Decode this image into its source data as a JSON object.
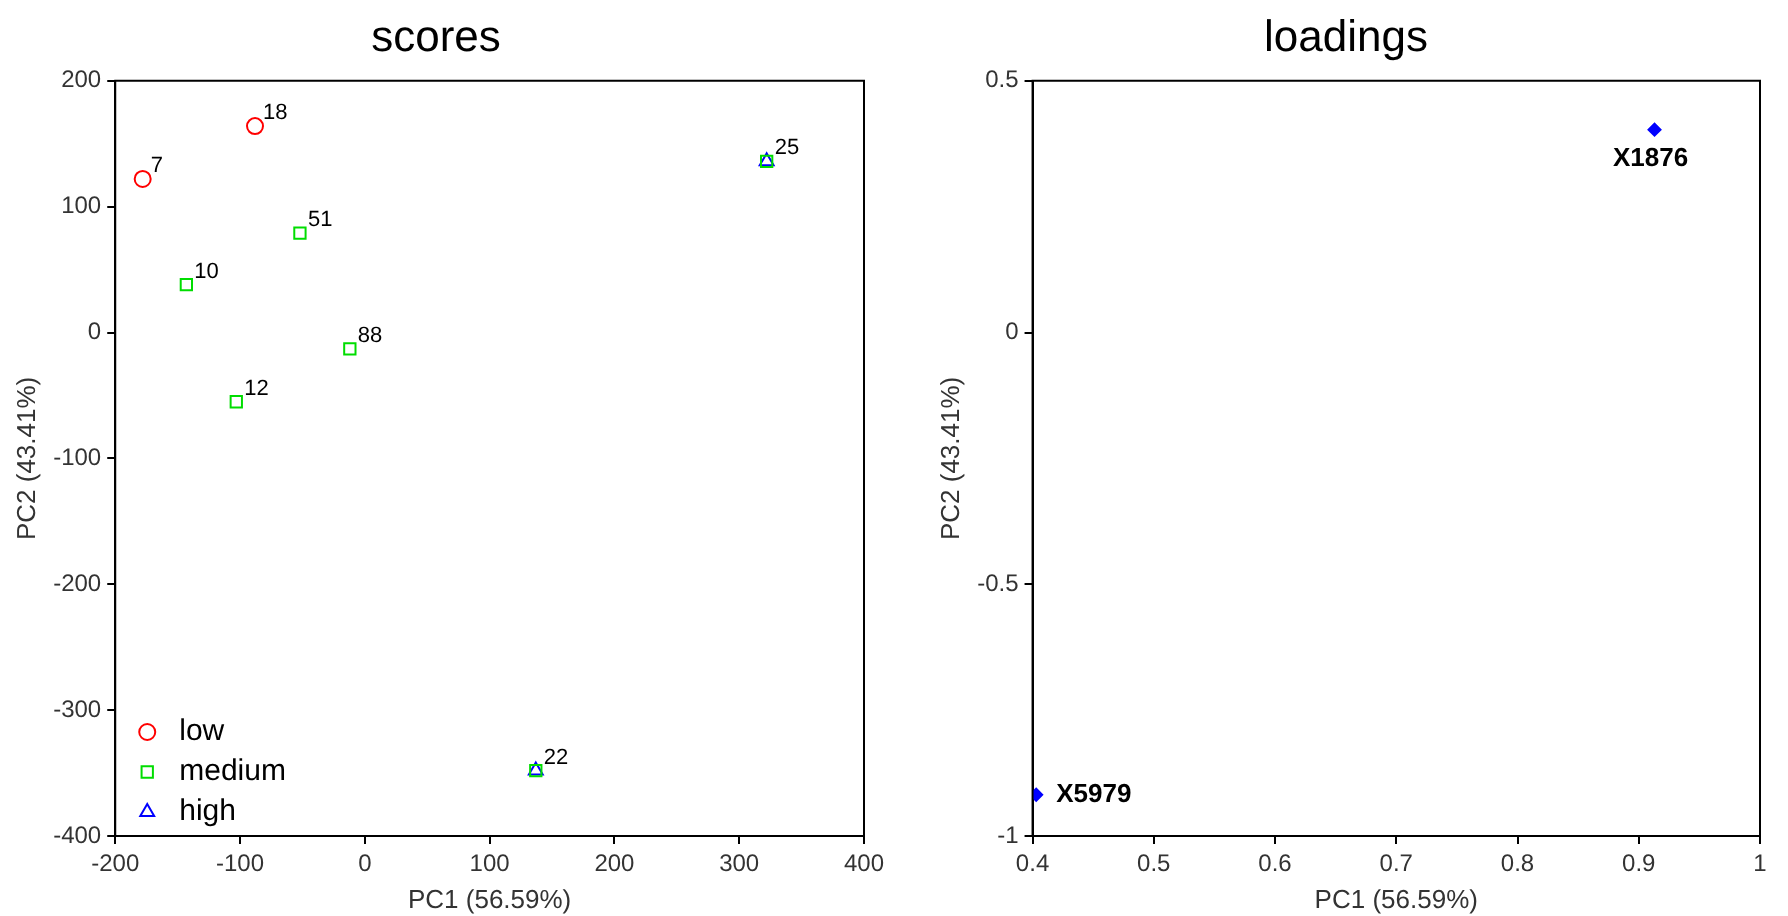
{
  "chart_data": [
    {
      "type": "scatter",
      "title": "scores",
      "xlabel": "PC1 (56.59%)",
      "ylabel": "PC2 (43.41%)",
      "xlim": [
        -200,
        400
      ],
      "xticks": [
        -200,
        -100,
        0,
        100,
        200,
        300,
        400
      ],
      "ylim": [
        -400,
        200
      ],
      "yticks": [
        -400,
        -300,
        -200,
        -100,
        0,
        100,
        200
      ],
      "grid": false,
      "legend": "bottom left",
      "series": [
        {
          "name": "low",
          "color": "#ff0000",
          "marker": "circle",
          "x": [
            -178,
            -88
          ],
          "values": [
            122,
            164
          ]
        },
        {
          "name": "medium",
          "color": "#00dd00",
          "marker": "square",
          "x": [
            -143,
            -52,
            -12,
            -103,
            322,
            137
          ],
          "values": [
            38,
            79,
            -13,
            -55,
            136,
            -348
          ]
        },
        {
          "name": "high",
          "color": "#0000ff",
          "marker": "triangle",
          "x": [
            322,
            137
          ],
          "values": [
            136,
            -348
          ]
        }
      ],
      "annotations": [
        {
          "text": "7",
          "x": -178,
          "y": 122
        },
        {
          "text": "18",
          "x": -88,
          "y": 164
        },
        {
          "text": "10",
          "x": -143,
          "y": 38
        },
        {
          "text": "51",
          "x": -52,
          "y": 79
        },
        {
          "text": "88",
          "x": -12,
          "y": -13
        },
        {
          "text": "12",
          "x": -103,
          "y": -55
        },
        {
          "text": "25",
          "x": 322,
          "y": 136
        },
        {
          "text": "22",
          "x": 137,
          "y": -348
        }
      ]
    },
    {
      "type": "scatter",
      "title": "loadings",
      "xlabel": "PC1 (56.59%)",
      "ylabel": "PC2 (43.41%)",
      "xlim": [
        0.4,
        1
      ],
      "xticks": [
        0.4,
        0.5,
        0.6,
        0.7,
        0.8,
        0.9,
        1
      ],
      "ylim": [
        -1,
        0.5
      ],
      "yticks": [
        -1,
        -0.5,
        0,
        0.5
      ],
      "grid": false,
      "legend": false,
      "marker": "diamond",
      "series": [
        {
          "color": "#0000ff",
          "x": [
            0.913,
            0.403
          ],
          "values": [
            0.403,
            -0.918
          ]
        }
      ],
      "annotations": [
        {
          "text": "X1876",
          "x": 0.913,
          "y": 0.403
        },
        {
          "text": "X5979",
          "x": 0.403,
          "y": -0.918
        }
      ]
    }
  ]
}
